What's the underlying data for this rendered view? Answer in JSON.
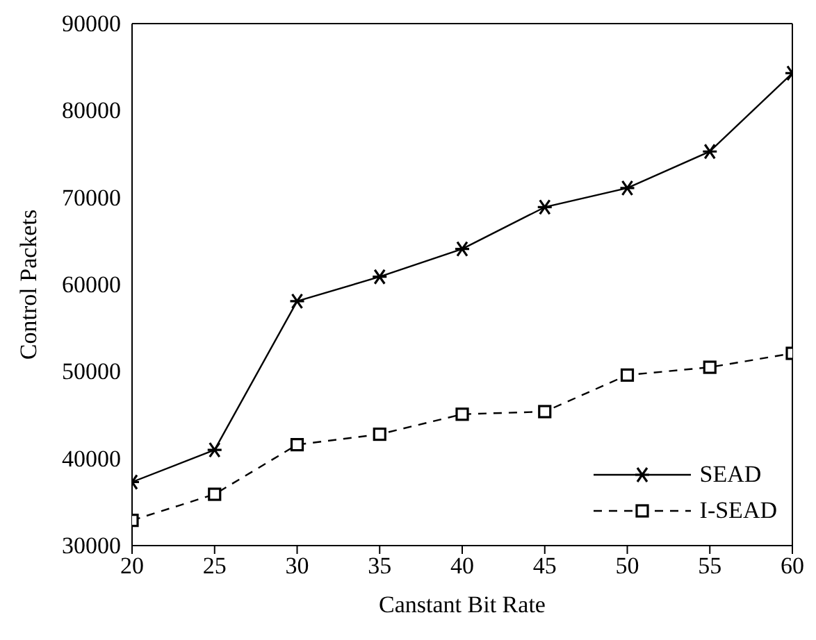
{
  "chart_data": {
    "type": "line",
    "xlabel": "Canstant Bit Rate",
    "ylabel": "Control Packets",
    "x": [
      20,
      25,
      30,
      35,
      40,
      45,
      50,
      55,
      60
    ],
    "xlim": [
      20,
      60
    ],
    "xticks": [
      20,
      25,
      30,
      35,
      40,
      45,
      50,
      55,
      60
    ],
    "ylim": [
      30000,
      90000
    ],
    "yticks": [
      30000,
      40000,
      50000,
      60000,
      70000,
      80000,
      90000
    ],
    "grid": false,
    "legend": "bottom right",
    "series": [
      {
        "name": "SEAD",
        "color": "#000000",
        "marker": "cross",
        "line_style": "solid",
        "values": [
          37300,
          41000,
          58100,
          60900,
          64100,
          68900,
          71100,
          75300,
          84300
        ]
      },
      {
        "name": "I-SEAD",
        "color": "#000000",
        "marker": "square",
        "line_style": "dashed",
        "values": [
          32900,
          35900,
          41600,
          42800,
          45100,
          45400,
          49600,
          50500,
          52100
        ]
      }
    ]
  }
}
